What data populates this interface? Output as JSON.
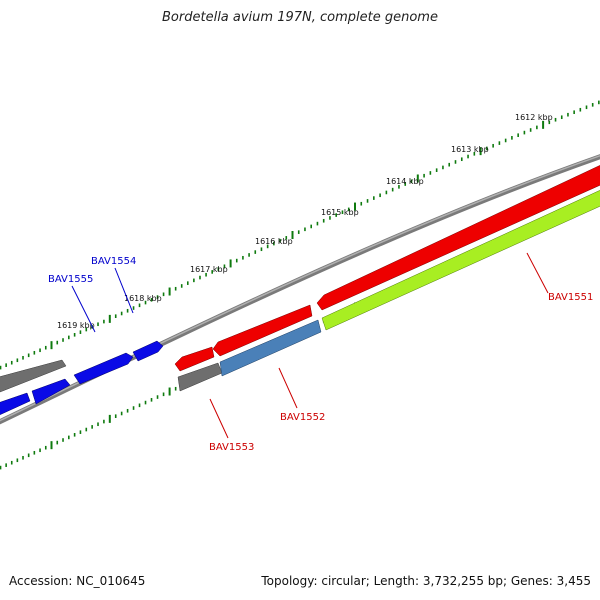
{
  "title": "Bordetella avium 197N, complete genome",
  "footer": {
    "accession": "Accession: NC_010645",
    "summary": "Topology: circular; Length: 3,732,255 bp; Genes: 3,455"
  },
  "colors": {
    "backbone": "#8a8a8a",
    "tick": "#0e7a0e",
    "gene_gray": "#6e6e6e",
    "gene_blue": "#0a0ae6",
    "gene_red": "#ee0000",
    "gene_steel": "#4a80b8",
    "gene_lime": "#a8ee22",
    "label_blue": "#0000cc",
    "label_red": "#cc0000"
  },
  "scale_labels": [
    "1612 kbp",
    "1613 kbp",
    "1614 kbp",
    "1615 kbp",
    "1616 kbp",
    "1617 kbp",
    "1618 kbp",
    "1619 kbp"
  ],
  "genes": [
    {
      "name": "BAV1551",
      "color": "red"
    },
    {
      "name": "BAV1552",
      "color": "red"
    },
    {
      "name": "BAV1553",
      "color": "red"
    },
    {
      "name": "BAV1554",
      "color": "blue"
    },
    {
      "name": "BAV1555",
      "color": "blue"
    }
  ]
}
